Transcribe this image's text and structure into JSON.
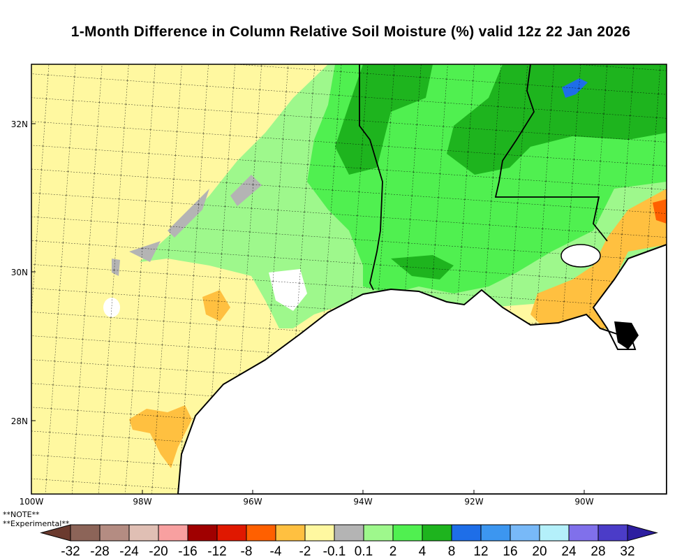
{
  "title": "1-Month Difference in Column Relative Soil Moisture (%) valid 12z 22 Jan 2026",
  "axes": {
    "longitude_labels": [
      "100W",
      "98W",
      "96W",
      "94W",
      "92W",
      "90W"
    ],
    "latitude_labels": [
      "32N",
      "30N",
      "28N"
    ]
  },
  "colorbar": {
    "labels": [
      "-32",
      "-28",
      "-24",
      "-20",
      "-16",
      "-12",
      "-8",
      "-4",
      "-2",
      "-0.1",
      "0.1",
      "2",
      "4",
      "8",
      "12",
      "16",
      "20",
      "24",
      "28",
      "32"
    ],
    "under_color": "#6b3a2e",
    "over_color": "#2d1ea0",
    "colors": [
      "#8c6458",
      "#b48c82",
      "#e0bfb4",
      "#f8a0a0",
      "#a00000",
      "#e01800",
      "#ff6000",
      "#ffc040",
      "#fff8a0",
      "#b4b4b4",
      "#9ef88c",
      "#50f050",
      "#1eb41e",
      "#1e6ee8",
      "#3c96f0",
      "#78b9f8",
      "#b4f0fa",
      "#8070eb",
      "#4b3cc8"
    ]
  },
  "notes": [
    "**NOTE**",
    "**Experimental**"
  ]
}
